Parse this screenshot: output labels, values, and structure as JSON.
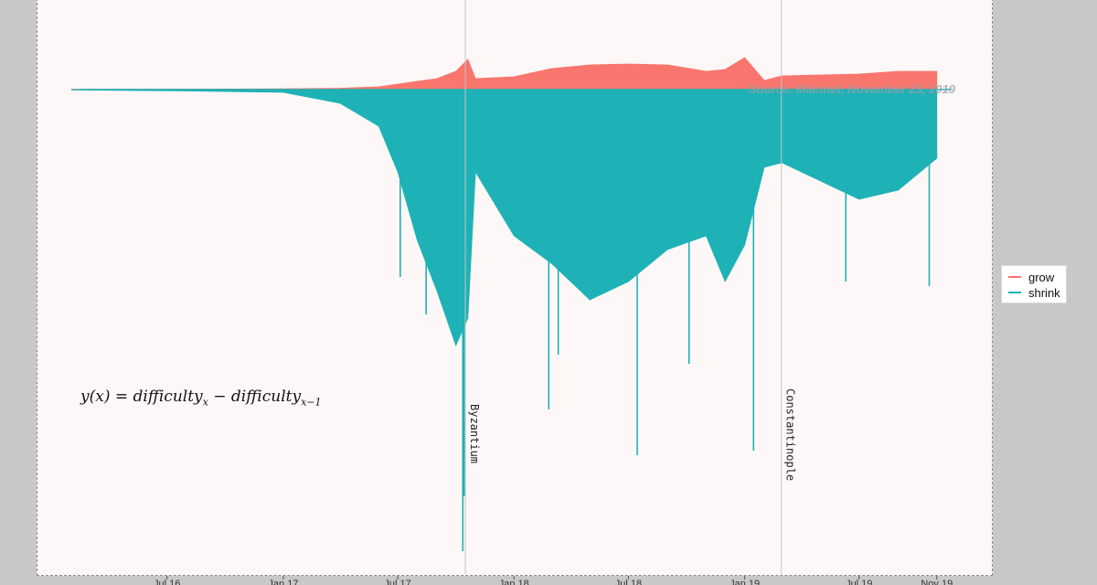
{
  "chart_data": {
    "type": "area",
    "title": "",
    "xlabel": "",
    "ylabel": "",
    "x_ticks": [
      "Jul 16",
      "Jan 17",
      "Jul 17",
      "Jan 18",
      "Jul 18",
      "Jan 19",
      "Jul 19",
      "Nov 19"
    ],
    "x_range": [
      "2016-02",
      "2019-11-23"
    ],
    "grid": false,
    "legend_position": "right",
    "series": [
      {
        "name": "grow",
        "color": "#f8766d",
        "x": [
          "2016-02",
          "2016-08",
          "2017-01",
          "2017-04",
          "2017-06",
          "2017-07",
          "2017-08",
          "2017-09",
          "2017-10",
          "2017-10-20",
          "2017-11",
          "2018-01",
          "2018-03",
          "2018-05",
          "2018-07",
          "2018-09",
          "2018-11",
          "2018-12",
          "2019-01",
          "2019-02",
          "2019-03",
          "2019-05",
          "2019-07",
          "2019-09",
          "2019-11"
        ],
        "values": [
          0.3,
          0.5,
          0.8,
          1.5,
          3,
          6,
          9,
          12,
          20,
          33,
          12,
          14,
          23,
          27,
          28,
          27,
          20,
          22,
          35,
          10,
          15,
          16,
          17,
          20,
          20
        ]
      },
      {
        "name": "shrink",
        "color": "#1eb2b6",
        "x": [
          "2016-02",
          "2016-08",
          "2017-01",
          "2017-04",
          "2017-06",
          "2017-07",
          "2017-08",
          "2017-09",
          "2017-10",
          "2017-10-20",
          "2017-11",
          "2018-01",
          "2018-03",
          "2018-05",
          "2018-07",
          "2018-09",
          "2018-11",
          "2018-12",
          "2019-01",
          "2019-02",
          "2019-03",
          "2019-05",
          "2019-07",
          "2019-09",
          "2019-11"
        ],
        "values": [
          -0.5,
          -1.5,
          -3,
          -15,
          -40,
          -90,
          -165,
          -220,
          -280,
          -250,
          -90,
          -160,
          -190,
          -230,
          -210,
          -175,
          -160,
          -210,
          -170,
          -85,
          -80,
          -100,
          -120,
          -110,
          -75
        ],
        "spikes": [
          {
            "x": "2017-07-05",
            "y": -205
          },
          {
            "x": "2017-08-15",
            "y": -246
          },
          {
            "x": "2017-10-12",
            "y": -505
          },
          {
            "x": "2017-10-14",
            "y": -445
          },
          {
            "x": "2018-02-25",
            "y": -350
          },
          {
            "x": "2018-03-12",
            "y": -290
          },
          {
            "x": "2018-07-15",
            "y": -400
          },
          {
            "x": "2018-10-05",
            "y": -300
          },
          {
            "x": "2019-01-15",
            "y": -395
          },
          {
            "x": "2019-06-10",
            "y": -210
          },
          {
            "x": "2019-10-20",
            "y": -215
          }
        ]
      }
    ],
    "vlines": [
      {
        "x": "2017-10-16",
        "label": "Byzantium"
      },
      {
        "x": "2019-02-28",
        "label": "Constantinople"
      }
    ],
    "annotations": {
      "source": "Source: Mainnet, November 23, 2019",
      "formula_lhs": "y(x) = difficulty",
      "formula_sub1": "x",
      "formula_mid": " − difficulty",
      "formula_sub2": "x−1"
    }
  }
}
